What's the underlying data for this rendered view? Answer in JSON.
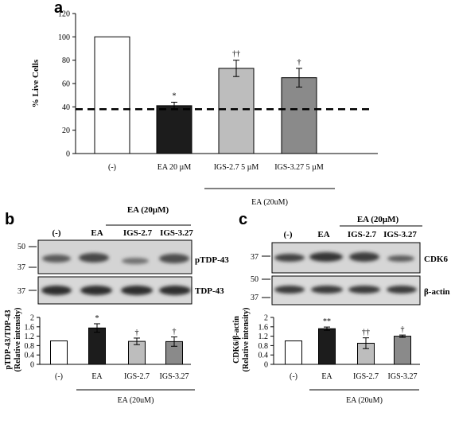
{
  "chart_data": [
    {
      "panel": "a",
      "type": "bar",
      "ylabel": "% Live Cells",
      "ylim": [
        0,
        120
      ],
      "yticks": [
        0,
        20,
        40,
        60,
        80,
        100,
        120
      ],
      "categories": [
        "(-)",
        "EA 20 µM",
        "IGS-2.7 5 µM",
        "IGS-3.27 5 µM"
      ],
      "values": [
        100,
        41,
        73,
        65
      ],
      "errors": [
        0,
        3,
        7,
        8
      ],
      "significance": [
        "",
        "*",
        "††",
        "†"
      ],
      "bar_colors": [
        "#ffffff",
        "#1c1c1c",
        "#bdbdbd",
        "#8a8a8a"
      ],
      "reference_line": 38,
      "group_label": "EA (20uM)"
    },
    {
      "panel": "b",
      "type": "bar",
      "ylabel": "pTDP-43/TDP-43",
      "ylabel2": "(Relative intensity)",
      "ylim": [
        0,
        2.0
      ],
      "yticks": [
        "0",
        "0.4",
        "0.8",
        "1.2",
        "1.6",
        "2"
      ],
      "categories": [
        "(-)",
        "EA",
        "IGS-2.7",
        "IGS-3.27"
      ],
      "values": [
        1.0,
        1.55,
        0.98,
        0.97
      ],
      "errors": [
        0,
        0.18,
        0.14,
        0.2
      ],
      "significance": [
        "",
        "*",
        "†",
        "†"
      ],
      "bar_colors": [
        "#ffffff",
        "#1c1c1c",
        "#bdbdbd",
        "#8a8a8a"
      ],
      "group_label": "EA (20uM)"
    },
    {
      "panel": "c",
      "type": "bar",
      "ylabel": "CDK6/β-actin",
      "ylabel2": "(Relative intensity)",
      "ylim": [
        0,
        2.0
      ],
      "yticks": [
        "0",
        "0.4",
        "0.8",
        "1.2",
        "1.6",
        "2"
      ],
      "categories": [
        "(-)",
        "EA",
        "IGS-2.7",
        "IGS-3.27"
      ],
      "values": [
        1.0,
        1.52,
        0.9,
        1.2
      ],
      "errors": [
        0,
        0.07,
        0.23,
        0.05
      ],
      "significance": [
        "",
        "**",
        "††",
        "†"
      ],
      "bar_colors": [
        "#ffffff",
        "#1c1c1c",
        "#bdbdbd",
        "#8a8a8a"
      ],
      "group_label": "EA (20uM)"
    }
  ],
  "blots": {
    "b": {
      "letter": "b",
      "header_group": "EA (20μM)",
      "lanes": [
        "(-)",
        "EA",
        "IGS-2.7",
        "IGS-3.27"
      ],
      "rows": [
        {
          "label": "pTDP-43",
          "markers": [
            "50",
            "37"
          ]
        },
        {
          "label": "TDP-43",
          "markers": [
            "37"
          ]
        }
      ]
    },
    "c": {
      "letter": "c",
      "header_group": "EA (20μM)",
      "lanes": [
        "(-)",
        "EA",
        "IGS-2.7",
        "IGS-3.27"
      ],
      "rows": [
        {
          "label": "CDK6",
          "markers": [
            "37"
          ]
        },
        {
          "label": "β-actin",
          "markers": [
            "50",
            "37"
          ]
        }
      ]
    }
  },
  "panel_a_letter": "a"
}
